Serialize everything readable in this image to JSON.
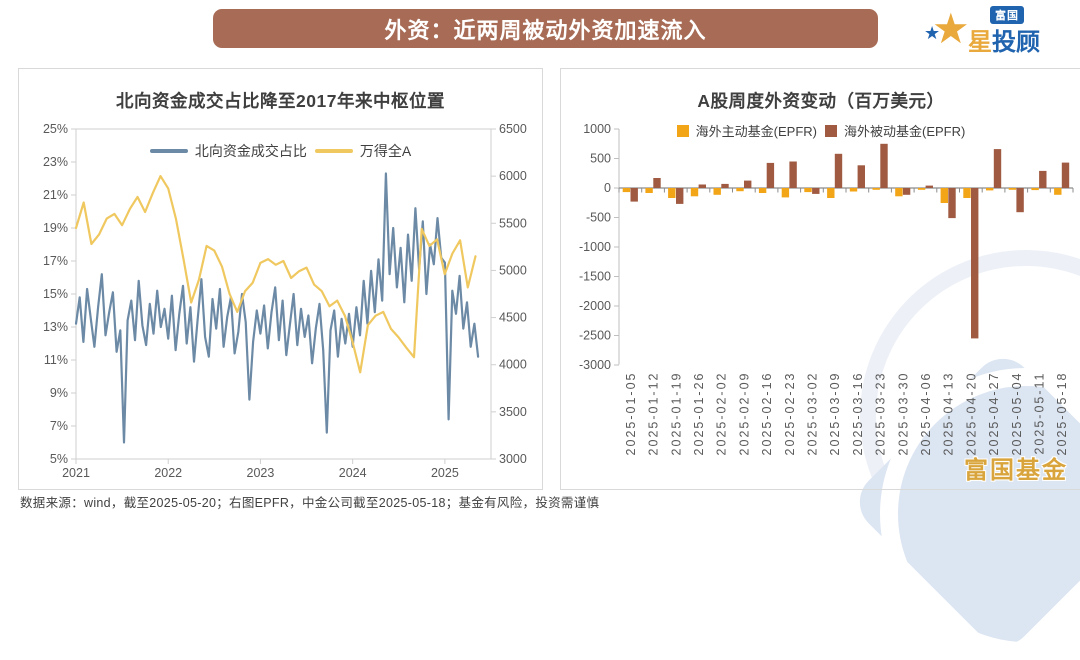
{
  "banner": {
    "title": "外资：近两周被动外资加速流入"
  },
  "logo": {
    "badge": "富国",
    "star_char": "★",
    "name_first": "星",
    "name_rest": "投顾"
  },
  "footer": {
    "text": "数据来源：wind，截至2025-05-20；右图EPFR，中金公司截至2025-05-18；基金有风险，投资需谨慎"
  },
  "watermark": {
    "text": "富国基金"
  },
  "colors": {
    "banner_bg": "#A86B55",
    "northbound_line": "#6C8AA5",
    "windA_line": "#F0C860",
    "active_bar": "#F2A516",
    "passive_bar": "#A05A42",
    "logo_blue": "#2063AE",
    "logo_gold": "#E9A93C"
  },
  "chart_data": [
    {
      "type": "line",
      "title": "北向资金成交占比降至2017年来中枢位置",
      "legend_position": "top-center",
      "grid": false,
      "x_range": [
        2021,
        2025.5
      ],
      "x_ticks": [
        2021,
        2022,
        2023,
        2024,
        2025
      ],
      "left_axis": {
        "min": 5,
        "max": 25,
        "tick_values": [
          25,
          23,
          21,
          19,
          17,
          15,
          13,
          11,
          9,
          7,
          5
        ],
        "tick_labels": [
          "25%",
          "23%",
          "21%",
          "19%",
          "17%",
          "15%",
          "13%",
          "11%",
          "9%",
          "7%",
          "5%"
        ]
      },
      "right_axis": {
        "min": 3000,
        "max": 6500,
        "tick_values": [
          6500,
          6000,
          5500,
          5000,
          4500,
          4000,
          3500,
          3000
        ]
      },
      "series": [
        {
          "name": "北向资金成交占比",
          "axis": "left",
          "unit": "%",
          "color": "#6C8AA5",
          "x_start": 2021.0,
          "x_step": 0.04,
          "values": [
            13.2,
            14.8,
            12.1,
            15.3,
            13.5,
            11.8,
            14.2,
            16.2,
            12.5,
            13.9,
            15.1,
            11.5,
            12.8,
            6.0,
            13.4,
            14.6,
            12.2,
            15.8,
            13.1,
            11.9,
            14.4,
            12.6,
            15.2,
            13.0,
            14.1,
            12.3,
            14.9,
            11.6,
            13.8,
            15.5,
            12.0,
            14.2,
            10.9,
            13.5,
            15.9,
            12.4,
            11.2,
            14.7,
            12.9,
            15.3,
            11.8,
            13.6,
            14.8,
            11.4,
            12.7,
            15.0,
            13.3,
            8.6,
            12.1,
            14.0,
            12.6,
            14.3,
            11.7,
            13.9,
            15.4,
            12.2,
            14.6,
            11.3,
            13.2,
            15.0,
            11.9,
            14.1,
            12.4,
            13.7,
            10.8,
            12.9,
            14.4,
            11.6,
            6.6,
            12.8,
            14.0,
            11.2,
            13.5,
            12.0,
            13.8,
            11.8,
            14.2,
            12.5,
            15.8,
            13.2,
            16.4,
            13.9,
            17.1,
            14.6,
            22.3,
            16.2,
            19.0,
            15.4,
            17.8,
            14.5,
            18.6,
            15.8,
            20.2,
            16.5,
            19.4,
            15.0,
            18.0,
            16.8,
            19.6,
            17.2,
            16.9,
            7.4,
            15.2,
            13.8,
            16.1,
            12.9,
            14.5,
            11.8,
            13.2,
            11.2
          ]
        },
        {
          "name": "万得全A",
          "axis": "right",
          "unit": "points",
          "color": "#F0C860",
          "x_start": 2021.0,
          "x_step": 0.0833,
          "values": [
            5450,
            5720,
            5280,
            5380,
            5550,
            5600,
            5480,
            5650,
            5780,
            5620,
            5820,
            6000,
            5870,
            5550,
            5120,
            4660,
            4900,
            5260,
            5210,
            5040,
            4750,
            4560,
            4780,
            4870,
            5080,
            5120,
            5060,
            5100,
            4920,
            4990,
            5030,
            4850,
            4780,
            4620,
            4680,
            4520,
            4240,
            3920,
            4420,
            4520,
            4560,
            4380,
            4290,
            4180,
            4080,
            5440,
            5260,
            5330,
            4960,
            5180,
            5320,
            4820,
            5150
          ]
        }
      ]
    },
    {
      "type": "bar",
      "title": "A股周度外资变动（百万美元）",
      "legend_position": "top-center",
      "grid": false,
      "ylim": [
        -3000,
        1000
      ],
      "y_ticks": [
        1000,
        500,
        0,
        -500,
        -1000,
        -1500,
        -2000,
        -2500,
        -3000
      ],
      "categories": [
        "2025-01-05",
        "2025-01-12",
        "2025-01-19",
        "2025-01-26",
        "2025-02-02",
        "2025-02-09",
        "2025-02-16",
        "2025-02-23",
        "2025-03-02",
        "2025-03-09",
        "2025-03-16",
        "2025-03-23",
        "2025-03-30",
        "2025-04-06",
        "2025-04-13",
        "2025-04-20",
        "2025-04-27",
        "2025-05-04",
        "2025-05-11",
        "2025-05-18"
      ],
      "series": [
        {
          "name": "海外主动基金(EPFR)",
          "color": "#F2A516",
          "values": [
            -70,
            -85,
            -170,
            -140,
            -115,
            -55,
            -85,
            -160,
            -70,
            -170,
            -60,
            -30,
            -140,
            -30,
            -255,
            -170,
            -40,
            -30,
            -35,
            -115
          ]
        },
        {
          "name": "海外被动基金(EPFR)",
          "color": "#A05A42",
          "values": [
            -230,
            170,
            -270,
            60,
            70,
            125,
            425,
            450,
            -100,
            580,
            385,
            750,
            -115,
            40,
            -510,
            -2550,
            660,
            -410,
            290,
            430
          ]
        }
      ]
    }
  ]
}
